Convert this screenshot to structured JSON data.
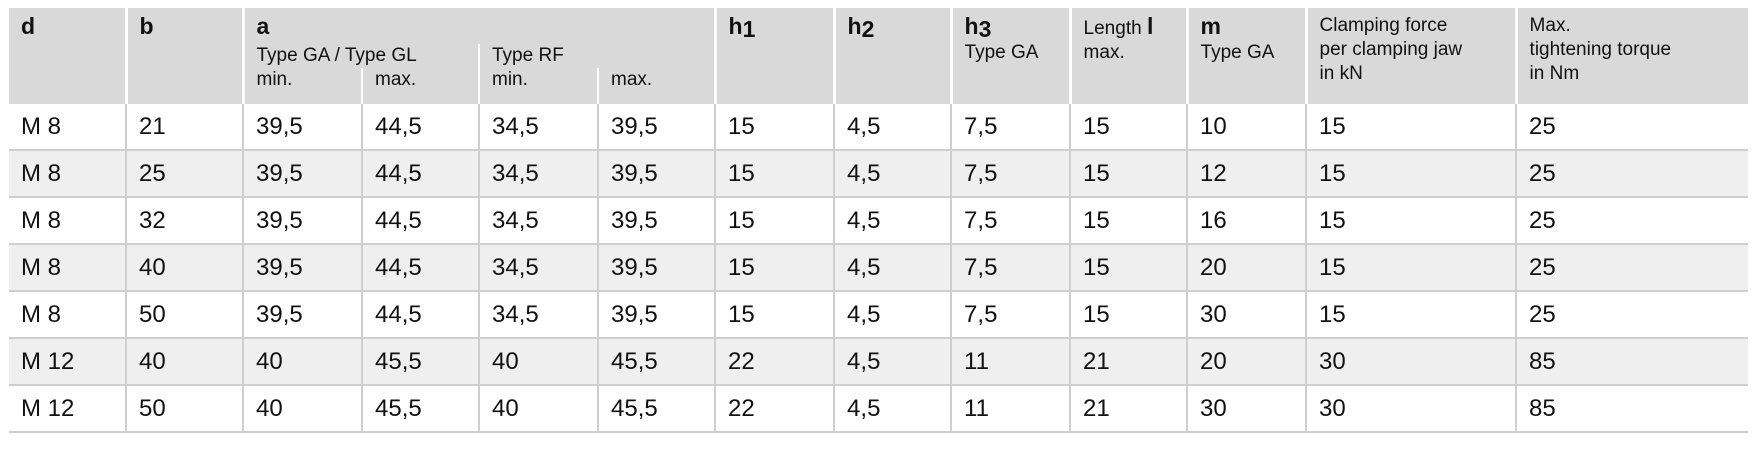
{
  "header": {
    "d": "d",
    "b": "b",
    "a": {
      "label": "a",
      "group1": "Type GA / Type GL",
      "group2": "Type RF",
      "min1": "min.",
      "max1": "max.",
      "min2": "min.",
      "max2": "max."
    },
    "h1": {
      "main": "h",
      "sub": "1"
    },
    "h2": {
      "main": "h",
      "sub": "2"
    },
    "h3": {
      "main": "h",
      "sub": "3",
      "line2": "Type GA"
    },
    "length": {
      "label": "Length",
      "symbol": "l",
      "line2": "max."
    },
    "m": {
      "label": "m",
      "line2": "Type GA"
    },
    "clamping": [
      "Clamping force",
      "per clamping jaw",
      "in kN"
    ],
    "torque": [
      "Max.",
      "tightening torque",
      "in Nm"
    ]
  },
  "table": {
    "rows": [
      [
        "M 8",
        "21",
        "39,5",
        "44,5",
        "34,5",
        "39,5",
        "15",
        "4,5",
        "7,5",
        "15",
        "10",
        "15",
        "25"
      ],
      [
        "M 8",
        "25",
        "39,5",
        "44,5",
        "34,5",
        "39,5",
        "15",
        "4,5",
        "7,5",
        "15",
        "12",
        "15",
        "25"
      ],
      [
        "M 8",
        "32",
        "39,5",
        "44,5",
        "34,5",
        "39,5",
        "15",
        "4,5",
        "7,5",
        "15",
        "16",
        "15",
        "25"
      ],
      [
        "M 8",
        "40",
        "39,5",
        "44,5",
        "34,5",
        "39,5",
        "15",
        "4,5",
        "7,5",
        "15",
        "20",
        "15",
        "25"
      ],
      [
        "M 8",
        "50",
        "39,5",
        "44,5",
        "34,5",
        "39,5",
        "15",
        "4,5",
        "7,5",
        "15",
        "30",
        "15",
        "25"
      ],
      [
        "M 12",
        "40",
        "40",
        "45,5",
        "40",
        "45,5",
        "22",
        "4,5",
        "11",
        "21",
        "20",
        "30",
        "85"
      ],
      [
        "M 12",
        "50",
        "40",
        "45,5",
        "40",
        "45,5",
        "22",
        "4,5",
        "11",
        "21",
        "30",
        "30",
        "85"
      ]
    ]
  }
}
